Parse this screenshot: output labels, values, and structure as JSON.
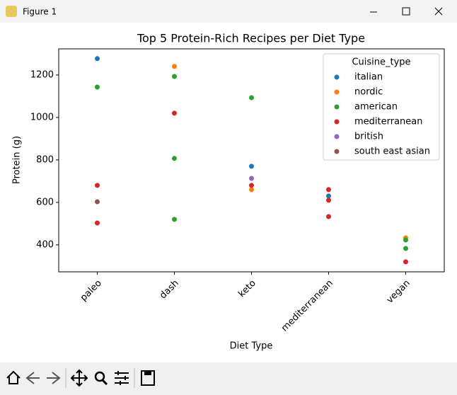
{
  "window": {
    "title": "Figure 1"
  },
  "chart_data": {
    "type": "strip",
    "title": "Top 5 Protein-Rich Recipes per Diet Type",
    "x_label": "Diet Type",
    "y_label": "Protein (g)",
    "categories": [
      "paleo",
      "dash",
      "keto",
      "mediterranean",
      "vegan"
    ],
    "ylim": [
      273,
      1323
    ],
    "yticks": [
      400,
      600,
      800,
      1000,
      1200
    ],
    "legend_title": "Cuisine_type",
    "legend": "upper right",
    "series": [
      {
        "name": "italian",
        "color": "#1f77b4",
        "x": [
          "paleo",
          "keto",
          "mediterranean"
        ],
        "values": [
          1277,
          770,
          630
        ]
      },
      {
        "name": "nordic",
        "color": "#ff7f0e",
        "x": [
          "dash",
          "keto",
          "vegan"
        ],
        "values": [
          1240,
          660,
          433
        ]
      },
      {
        "name": "american",
        "color": "#2ca02c",
        "x": [
          "paleo",
          "dash",
          "dash",
          "dash",
          "keto",
          "vegan",
          "vegan"
        ],
        "values": [
          1143,
          1193,
          807,
          520,
          1093,
          423,
          383
        ]
      },
      {
        "name": "mediterranean",
        "color": "#d62728",
        "x": [
          "paleo",
          "paleo",
          "dash",
          "keto",
          "mediterranean",
          "mediterranean",
          "mediterranean",
          "vegan"
        ],
        "values": [
          680,
          503,
          1020,
          680,
          660,
          610,
          533,
          320
        ]
      },
      {
        "name": "british",
        "color": "#9467bd",
        "x": [
          "keto"
        ],
        "values": [
          713
        ]
      },
      {
        "name": "south east asian",
        "color": "#8c564b",
        "x": [
          "paleo"
        ],
        "values": [
          603
        ]
      }
    ]
  }
}
